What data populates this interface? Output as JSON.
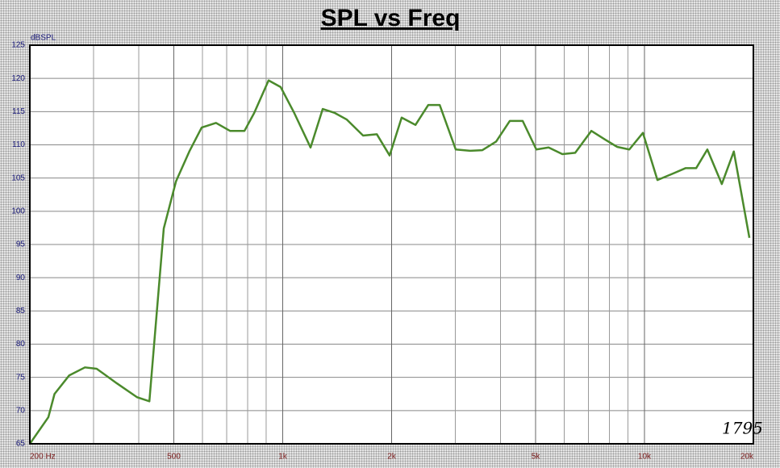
{
  "chart_data": {
    "type": "line",
    "title": "SPL vs Freq",
    "y_label": "dBSPL",
    "annotation": "1795",
    "xscale": "log",
    "grid": true,
    "xlim": [
      200,
      20000
    ],
    "ylim": [
      65,
      125
    ],
    "xticks": [
      {
        "value": 200,
        "label": "200 Hz"
      },
      500,
      {
        "value": 1000,
        "label": "1k"
      },
      {
        "value": 2000,
        "label": "2k"
      },
      {
        "value": 5000,
        "label": "5k"
      },
      {
        "value": 10000,
        "label": "10k"
      },
      {
        "value": 20000,
        "label": "20k"
      }
    ],
    "xminor": [
      300,
      400,
      600,
      700,
      800,
      900,
      3000,
      4000,
      6000,
      7000,
      8000,
      9000
    ],
    "yticks": [
      65,
      70,
      75,
      80,
      85,
      90,
      95,
      100,
      105,
      110,
      115,
      120,
      125
    ],
    "x": [
      200,
      225,
      234,
      257,
      284,
      306,
      348,
      396,
      428,
      469,
      507,
      553,
      597,
      654,
      715,
      784,
      834,
      914,
      987,
      1076,
      1194,
      1290,
      1393,
      1504,
      1668,
      1820,
      1975,
      2132,
      2328,
      2526,
      2716,
      3008,
      3298,
      3564,
      3890,
      4244,
      4606,
      5024,
      5432,
      5928,
      6434,
      7130,
      7780,
      8400,
      9080,
      9900,
      10860,
      12020,
      13000,
      13900,
      14920,
      16360,
      17660,
      19500
    ],
    "series": [
      {
        "name": "SPL",
        "color": "#4b8a2c",
        "values": [
          65,
          69,
          72.5,
          75.3,
          76.5,
          76.3,
          74.1,
          72,
          71.4,
          97.4,
          104.5,
          109.1,
          112.6,
          113.3,
          112.1,
          112.1,
          114.8,
          119.7,
          118.7,
          114.8,
          109.6,
          115.4,
          114.8,
          113.8,
          111.4,
          111.6,
          108.4,
          114.1,
          113,
          116,
          116,
          109.3,
          109.1,
          109.2,
          110.5,
          113.6,
          113.6,
          109.3,
          109.6,
          108.6,
          108.8,
          112.1,
          110.8,
          109.7,
          109.3,
          111.8,
          104.7,
          105.7,
          106.5,
          106.5,
          109.3,
          104.1,
          109,
          96
        ]
      }
    ]
  }
}
